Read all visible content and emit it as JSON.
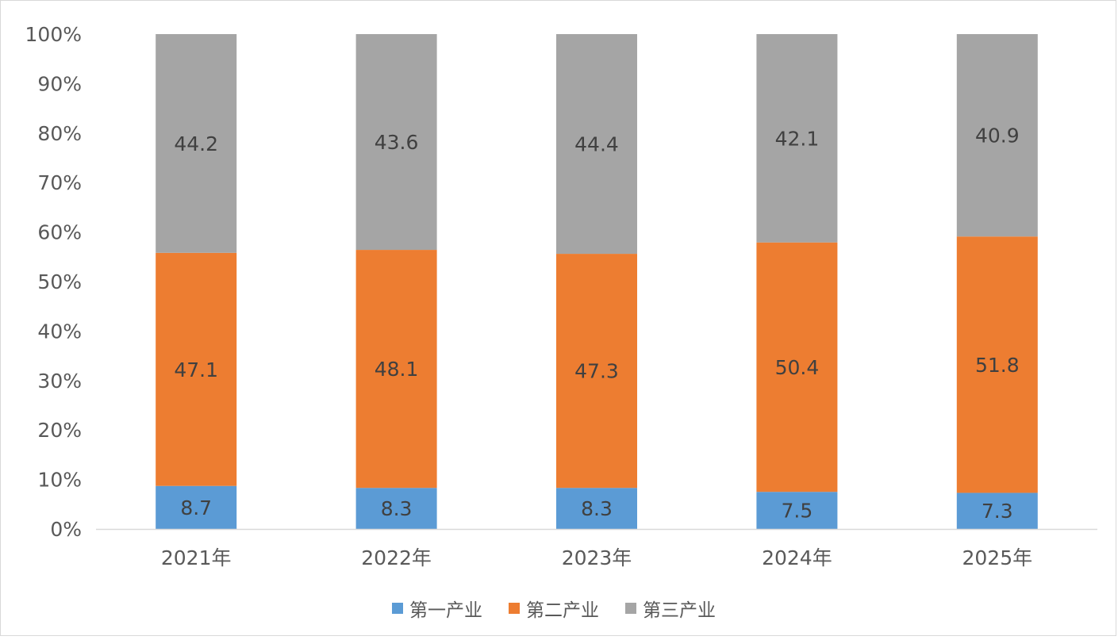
{
  "chart_data": {
    "type": "bar",
    "stacked": "percent",
    "categories": [
      "2021年",
      "2022年",
      "2023年",
      "2024年",
      "2025年"
    ],
    "series": [
      {
        "name": "第一产业",
        "color": "#5b9bd5",
        "values": [
          8.7,
          8.3,
          8.3,
          7.5,
          7.3
        ]
      },
      {
        "name": "第二产业",
        "color": "#ed7d31",
        "values": [
          47.1,
          48.1,
          47.3,
          50.4,
          51.8
        ]
      },
      {
        "name": "第三产业",
        "color": "#a5a5a5",
        "values": [
          44.2,
          43.6,
          44.4,
          42.1,
          40.9
        ]
      }
    ],
    "y_ticks": [
      "0%",
      "10%",
      "20%",
      "30%",
      "40%",
      "50%",
      "60%",
      "70%",
      "80%",
      "90%",
      "100%"
    ],
    "ylim": [
      0,
      100
    ],
    "grid": false,
    "legend_position": "bottom",
    "data_labels": true
  }
}
